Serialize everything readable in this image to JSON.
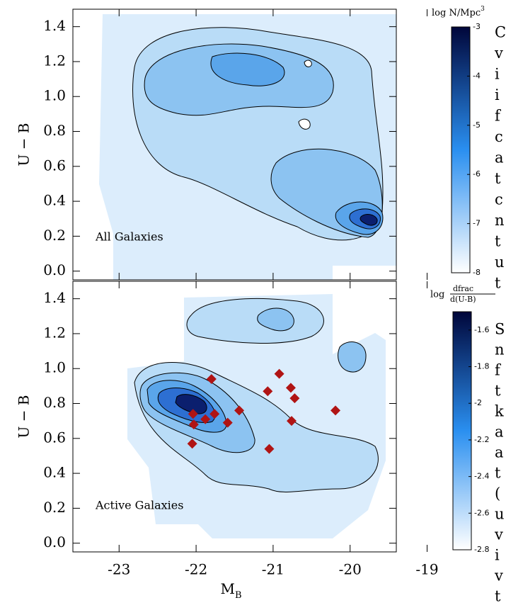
{
  "chart_data": [
    {
      "type": "contour",
      "annotation": "All Galaxies",
      "ylabel": "U − B",
      "xlim": [
        -23.6,
        -19.4
      ],
      "ylim": [
        -0.05,
        1.5
      ],
      "yticks": [
        {
          "value": 0,
          "label": "0.0"
        },
        0.2,
        0.4,
        0.6,
        0.8,
        {
          "value": 1,
          "label": "1.0"
        },
        1.2,
        1.4
      ],
      "colorbar": {
        "title": "log N/Mpc",
        "title_sup": "3",
        "lim": [
          -8,
          -3
        ],
        "ticks": [
          -3,
          -4,
          -5,
          -6,
          -7,
          -8
        ],
        "colors": [
          "#ffffff",
          "#2a8ff0",
          "#00063a"
        ]
      }
    },
    {
      "type": "scatter",
      "annotation": "Active Galaxies",
      "ylabel": "U − B",
      "xlabel": "M",
      "xlabel_sub": "B",
      "xlim": [
        -23.6,
        -19.4
      ],
      "ylim": [
        -0.05,
        1.5
      ],
      "xticks": [
        -23,
        -22,
        -21,
        -20,
        -19
      ],
      "yticks": [
        {
          "value": 0,
          "label": "0.0"
        },
        0.2,
        0.4,
        0.6,
        0.8,
        {
          "value": 1,
          "label": "1.0"
        },
        1.2,
        1.4
      ],
      "x": [
        -21.8,
        -21.07,
        -20.92,
        -20.77,
        -20.72,
        -22.04,
        -22.03,
        -21.88,
        -21.76,
        -21.44,
        -21.59,
        -20.76,
        -20.19,
        -22.05,
        -21.05
      ],
      "y": [
        0.94,
        0.87,
        0.97,
        0.89,
        0.83,
        0.74,
        0.68,
        0.71,
        0.74,
        0.76,
        0.69,
        0.7,
        0.76,
        0.57,
        0.54
      ],
      "color": "#b01414",
      "colorbar": {
        "title_lead": "log",
        "title_num": "dfrac",
        "title_den": "d(U-B)",
        "lim": [
          -2.8,
          -1.5
        ],
        "ticks": [
          -1.6,
          -1.8,
          -2.0,
          -2.2,
          -2.4,
          -2.6,
          -2.8
        ],
        "colors": [
          "#ffffff",
          "#2a8ff0",
          "#00063a"
        ]
      }
    }
  ],
  "caption_fragments": {
    "top": [
      "C",
      "v",
      "i",
      "i",
      "f",
      "c",
      "a",
      "t",
      "c",
      "n",
      "t",
      "u",
      "t"
    ],
    "bottom": [
      "S",
      "n",
      "f",
      "t",
      "k",
      "a",
      "a",
      "t",
      "(",
      "u",
      "v",
      "i",
      "v",
      "t"
    ]
  }
}
